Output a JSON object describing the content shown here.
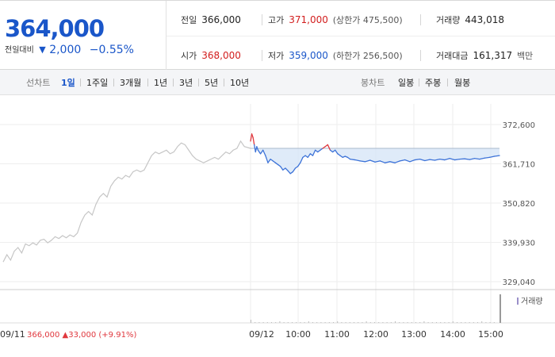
{
  "quote": {
    "price": "364,000",
    "change_label": "전일대비",
    "change_arrow": "▼",
    "change": "2,000",
    "change_pct": "−0.55%"
  },
  "info": {
    "prev_close_label": "전일",
    "prev_close": "366,000",
    "high_label": "고가",
    "high": "371,000",
    "upper_limit": "(상한가 475,500)",
    "volume_label": "거래량",
    "volume": "443,018",
    "open_label": "시가",
    "open": "368,000",
    "low_label": "저가",
    "low": "359,000",
    "lower_limit": "(하한가 256,500)",
    "amount_label": "거래대금",
    "amount": "161,317",
    "amount_unit": "백만"
  },
  "period_bar": {
    "line_label": "선차트",
    "line_items": [
      "1일",
      "1주일",
      "3개월",
      "1년",
      "3년",
      "5년",
      "10년"
    ],
    "selected": "1일",
    "candle_label": "봉차트",
    "candle_items": [
      "일봉",
      "주봉",
      "월봉"
    ]
  },
  "chart_data": {
    "type": "line",
    "y_ticks": [
      "372,600",
      "361,710",
      "350,820",
      "339,930",
      "329,040"
    ],
    "y_values": [
      372600,
      361710,
      350820,
      339930,
      329040
    ],
    "x_ticks": [
      "09/12",
      "10:00",
      "11:00",
      "12:00",
      "13:00",
      "14:00",
      "15:00"
    ],
    "prev_day_label": "09/11",
    "prev_close_reference": 366000,
    "volume_legend": "거래량",
    "prev_day_info": {
      "close": "366,000",
      "arrow": "▲",
      "change": "33,000",
      "pct": "(+9.91%)"
    },
    "prev_day_series": [
      [
        0.0,
        334500
      ],
      [
        0.015,
        336500
      ],
      [
        0.03,
        335000
      ],
      [
        0.045,
        337500
      ],
      [
        0.06,
        338500
      ],
      [
        0.075,
        337000
      ],
      [
        0.09,
        339500
      ],
      [
        0.105,
        339000
      ],
      [
        0.12,
        339800
      ],
      [
        0.135,
        339200
      ],
      [
        0.15,
        340500
      ],
      [
        0.165,
        340800
      ],
      [
        0.18,
        339800
      ],
      [
        0.195,
        340500
      ],
      [
        0.21,
        341500
      ],
      [
        0.225,
        341000
      ],
      [
        0.24,
        341800
      ],
      [
        0.255,
        341200
      ],
      [
        0.27,
        342000
      ],
      [
        0.285,
        341500
      ],
      [
        0.3,
        342500
      ],
      [
        0.315,
        345500
      ],
      [
        0.33,
        347500
      ],
      [
        0.345,
        348500
      ],
      [
        0.36,
        347500
      ],
      [
        0.375,
        350500
      ],
      [
        0.39,
        352500
      ],
      [
        0.405,
        353500
      ],
      [
        0.42,
        352500
      ],
      [
        0.435,
        355500
      ],
      [
        0.45,
        357000
      ],
      [
        0.465,
        358000
      ],
      [
        0.48,
        357500
      ],
      [
        0.495,
        358500
      ],
      [
        0.51,
        358000
      ],
      [
        0.525,
        359500
      ],
      [
        0.54,
        360000
      ],
      [
        0.555,
        359500
      ],
      [
        0.57,
        360000
      ],
      [
        0.585,
        362000
      ],
      [
        0.6,
        364000
      ],
      [
        0.615,
        365000
      ],
      [
        0.63,
        364500
      ],
      [
        0.645,
        365000
      ],
      [
        0.66,
        365500
      ],
      [
        0.675,
        364500
      ],
      [
        0.69,
        365000
      ],
      [
        0.705,
        366500
      ],
      [
        0.72,
        367500
      ],
      [
        0.735,
        367000
      ],
      [
        0.75,
        365500
      ],
      [
        0.765,
        364000
      ],
      [
        0.78,
        363000
      ],
      [
        0.795,
        362500
      ],
      [
        0.81,
        362000
      ],
      [
        0.825,
        362500
      ],
      [
        0.84,
        363000
      ],
      [
        0.855,
        363500
      ],
      [
        0.87,
        363000
      ],
      [
        0.885,
        364000
      ],
      [
        0.9,
        365000
      ],
      [
        0.915,
        364500
      ],
      [
        0.93,
        365500
      ],
      [
        0.945,
        366000
      ],
      [
        0.96,
        368000
      ],
      [
        0.975,
        366500
      ],
      [
        1.0,
        366000
      ]
    ],
    "today_series": [
      [
        0.0,
        368000
      ],
      [
        0.005,
        370000
      ],
      [
        0.01,
        369000
      ],
      [
        0.015,
        367000
      ],
      [
        0.02,
        365000
      ],
      [
        0.025,
        366500
      ],
      [
        0.03,
        365500
      ],
      [
        0.04,
        364500
      ],
      [
        0.05,
        365500
      ],
      [
        0.06,
        364000
      ],
      [
        0.07,
        362000
      ],
      [
        0.08,
        363000
      ],
      [
        0.09,
        362500
      ],
      [
        0.1,
        362000
      ],
      [
        0.11,
        361500
      ],
      [
        0.12,
        361000
      ],
      [
        0.13,
        360000
      ],
      [
        0.14,
        360500
      ],
      [
        0.15,
        359800
      ],
      [
        0.16,
        359000
      ],
      [
        0.17,
        359500
      ],
      [
        0.18,
        360500
      ],
      [
        0.19,
        361000
      ],
      [
        0.2,
        362000
      ],
      [
        0.21,
        363500
      ],
      [
        0.22,
        364000
      ],
      [
        0.23,
        363500
      ],
      [
        0.24,
        364500
      ],
      [
        0.25,
        364000
      ],
      [
        0.26,
        365500
      ],
      [
        0.27,
        365000
      ],
      [
        0.28,
        365500
      ],
      [
        0.29,
        366000
      ],
      [
        0.3,
        366500
      ],
      [
        0.31,
        367000
      ],
      [
        0.32,
        365500
      ],
      [
        0.33,
        365000
      ],
      [
        0.34,
        365500
      ],
      [
        0.35,
        364500
      ],
      [
        0.36,
        364000
      ],
      [
        0.37,
        363500
      ],
      [
        0.38,
        363800
      ],
      [
        0.39,
        363500
      ],
      [
        0.4,
        363000
      ],
      [
        0.42,
        362800
      ],
      [
        0.44,
        362500
      ],
      [
        0.46,
        362300
      ],
      [
        0.48,
        362700
      ],
      [
        0.5,
        362200
      ],
      [
        0.52,
        362500
      ],
      [
        0.54,
        362000
      ],
      [
        0.56,
        362300
      ],
      [
        0.58,
        362000
      ],
      [
        0.6,
        362500
      ],
      [
        0.62,
        362800
      ],
      [
        0.64,
        362300
      ],
      [
        0.66,
        362800
      ],
      [
        0.68,
        363000
      ],
      [
        0.7,
        362600
      ],
      [
        0.72,
        362900
      ],
      [
        0.74,
        362700
      ],
      [
        0.76,
        363000
      ],
      [
        0.78,
        362800
      ],
      [
        0.8,
        363200
      ],
      [
        0.82,
        362800
      ],
      [
        0.84,
        363000
      ],
      [
        0.86,
        363100
      ],
      [
        0.88,
        362900
      ],
      [
        0.9,
        363200
      ],
      [
        0.92,
        363000
      ],
      [
        0.94,
        363300
      ],
      [
        0.96,
        363500
      ],
      [
        0.98,
        363800
      ],
      [
        1.0,
        364000
      ]
    ],
    "colors": {
      "up": "#e0383e",
      "down": "#3d73d8",
      "prev_day": "#c6c6c6",
      "fill": "#d4e4f7",
      "grid": "#eeeeee"
    }
  }
}
